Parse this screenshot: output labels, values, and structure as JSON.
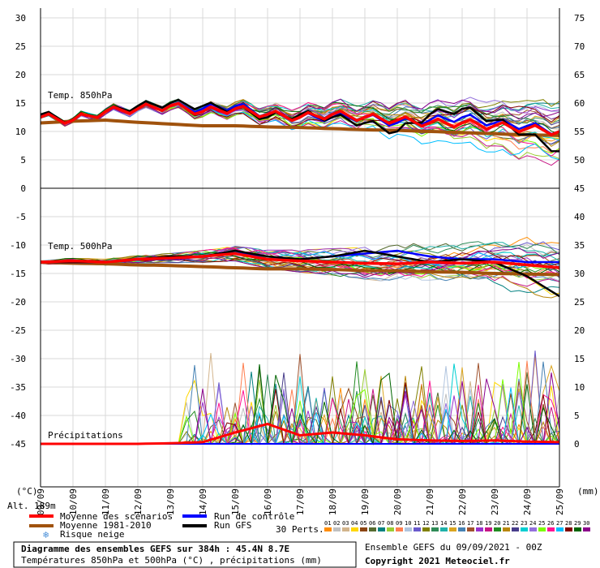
{
  "chart_data": {
    "type": "line",
    "title": "Diagramme des ensembles GEFS sur 384h : 45.4N 8.7E",
    "subtitle": "Températures 850hPa et 500hPa (°C) , précipitations (mm)",
    "run_label": "Ensemble GEFS du 09/09/2021 - 00Z",
    "copyright": "Copyright 2021 Meteociel.fr",
    "left_axis_unit": "(°C)",
    "right_axis_unit": "(mm)",
    "altitude": "Alt. 189m",
    "left_ticks": [
      "30",
      "25",
      "20",
      "15",
      "10",
      "5",
      "0",
      "-5",
      "-10",
      "-15",
      "-20",
      "-25",
      "-30",
      "-35",
      "-40",
      "-45"
    ],
    "right_ticks": [
      "75",
      "70",
      "65",
      "60",
      "55",
      "50",
      "45",
      "40",
      "35",
      "30",
      "25",
      "20",
      "15",
      "10",
      "5",
      "0"
    ],
    "x_ticks": [
      "09/09",
      "10/09",
      "11/09",
      "12/09",
      "13/09",
      "14/09",
      "15/09",
      "16/09",
      "17/09",
      "18/09",
      "19/09",
      "20/09",
      "21/09",
      "22/09",
      "23/09",
      "24/09",
      "25/09"
    ],
    "panel_labels": {
      "t850": "Temp. 850hPa",
      "t500": "Temp. 500hPa",
      "precip": "Précipitations"
    },
    "legend": {
      "mean": "Moyenne des scénarios",
      "climo": "Moyenne 1981-2010",
      "snow": "Risque neige",
      "control": "Run de contrôle",
      "gfs": "Run GFS",
      "perts": "30 Perts."
    },
    "pert_labels": [
      "01",
      "02",
      "03",
      "04",
      "05",
      "06",
      "07",
      "08",
      "09",
      "10",
      "11",
      "12",
      "13",
      "14",
      "15",
      "16",
      "17",
      "18",
      "19",
      "20",
      "21",
      "22",
      "23",
      "24",
      "25",
      "26",
      "27",
      "28",
      "29",
      "30"
    ],
    "pert_colors": [
      "#ff8c00",
      "#c0c0c0",
      "#d2b48c",
      "#ffd700",
      "#8b4513",
      "#556b2f",
      "#008080",
      "#9acd32",
      "#ff7f50",
      "#b0c4de",
      "#6a5acd",
      "#808000",
      "#2e8b57",
      "#20b2aa",
      "#daa520",
      "#4682b4",
      "#a0522d",
      "#9932cc",
      "#c71585",
      "#228b22",
      "#b8860b",
      "#483d8b",
      "#00ced1",
      "#9370db",
      "#7cfc00",
      "#ff1493",
      "#00bfff",
      "#800000",
      "#006400",
      "#8b008b"
    ],
    "series_colors": {
      "mean": "#ff0000",
      "climo": "#a0520d",
      "control": "#0000ff",
      "gfs": "#000000"
    },
    "t850": {
      "mean": [
        12.5,
        12,
        13.5,
        14,
        14.5,
        13.5,
        14,
        13,
        12.5,
        13,
        12.5,
        12,
        11.5,
        11.5,
        11,
        10.5,
        10
      ],
      "climo": [
        11.5,
        11.8,
        12,
        11.6,
        11.3,
        11,
        11,
        10.8,
        10.7,
        10.5,
        10.3,
        10.2,
        10,
        9.8,
        9.6,
        9.4,
        9.3
      ],
      "control": [
        12.8,
        12,
        13.5,
        14,
        14.5,
        14,
        14.5,
        13,
        12.5,
        12.5,
        12.5,
        11.5,
        12,
        12.5,
        11.5,
        11,
        10
      ],
      "gfs": [
        13,
        12,
        13.5,
        14.5,
        15,
        14.5,
        14,
        12.5,
        13,
        12.5,
        11.5,
        10,
        13,
        14,
        12,
        9.5,
        6.5
      ]
    },
    "t500": {
      "mean": [
        -13,
        -12.8,
        -13,
        -12.5,
        -12.3,
        -12,
        -11.5,
        -12.5,
        -12.8,
        -13,
        -13.2,
        -13.3,
        -13,
        -13.2,
        -13,
        -13.5,
        -14
      ],
      "climo": [
        -13,
        -13.2,
        -13.3,
        -13.5,
        -13.6,
        -13.8,
        -14,
        -14.2,
        -14.2,
        -14.3,
        -14.5,
        -14.5,
        -14.7,
        -14.8,
        -15,
        -15.1,
        -15.2
      ],
      "control": [
        -13,
        -13,
        -13,
        -12.5,
        -12.5,
        -12,
        -11,
        -12.5,
        -12.5,
        -12,
        -11.5,
        -11,
        -12,
        -12.5,
        -12.5,
        -13,
        -13
      ],
      "gfs": [
        -13,
        -13,
        -13,
        -12.5,
        -12,
        -12,
        -11,
        -12,
        -12.5,
        -12,
        -11,
        -12,
        -13,
        -12.5,
        -13,
        -15.5,
        -19
      ]
    },
    "precip_mean": [
      0,
      0,
      0,
      0,
      0.1,
      0.3,
      2,
      3.5,
      1.5,
      2,
      1.5,
      0.8,
      0.6,
      0.5,
      0.6,
      0.4,
      0.3
    ],
    "ylim_left": [
      -45,
      30
    ],
    "ylim_right_precip": [
      0,
      75
    ]
  }
}
